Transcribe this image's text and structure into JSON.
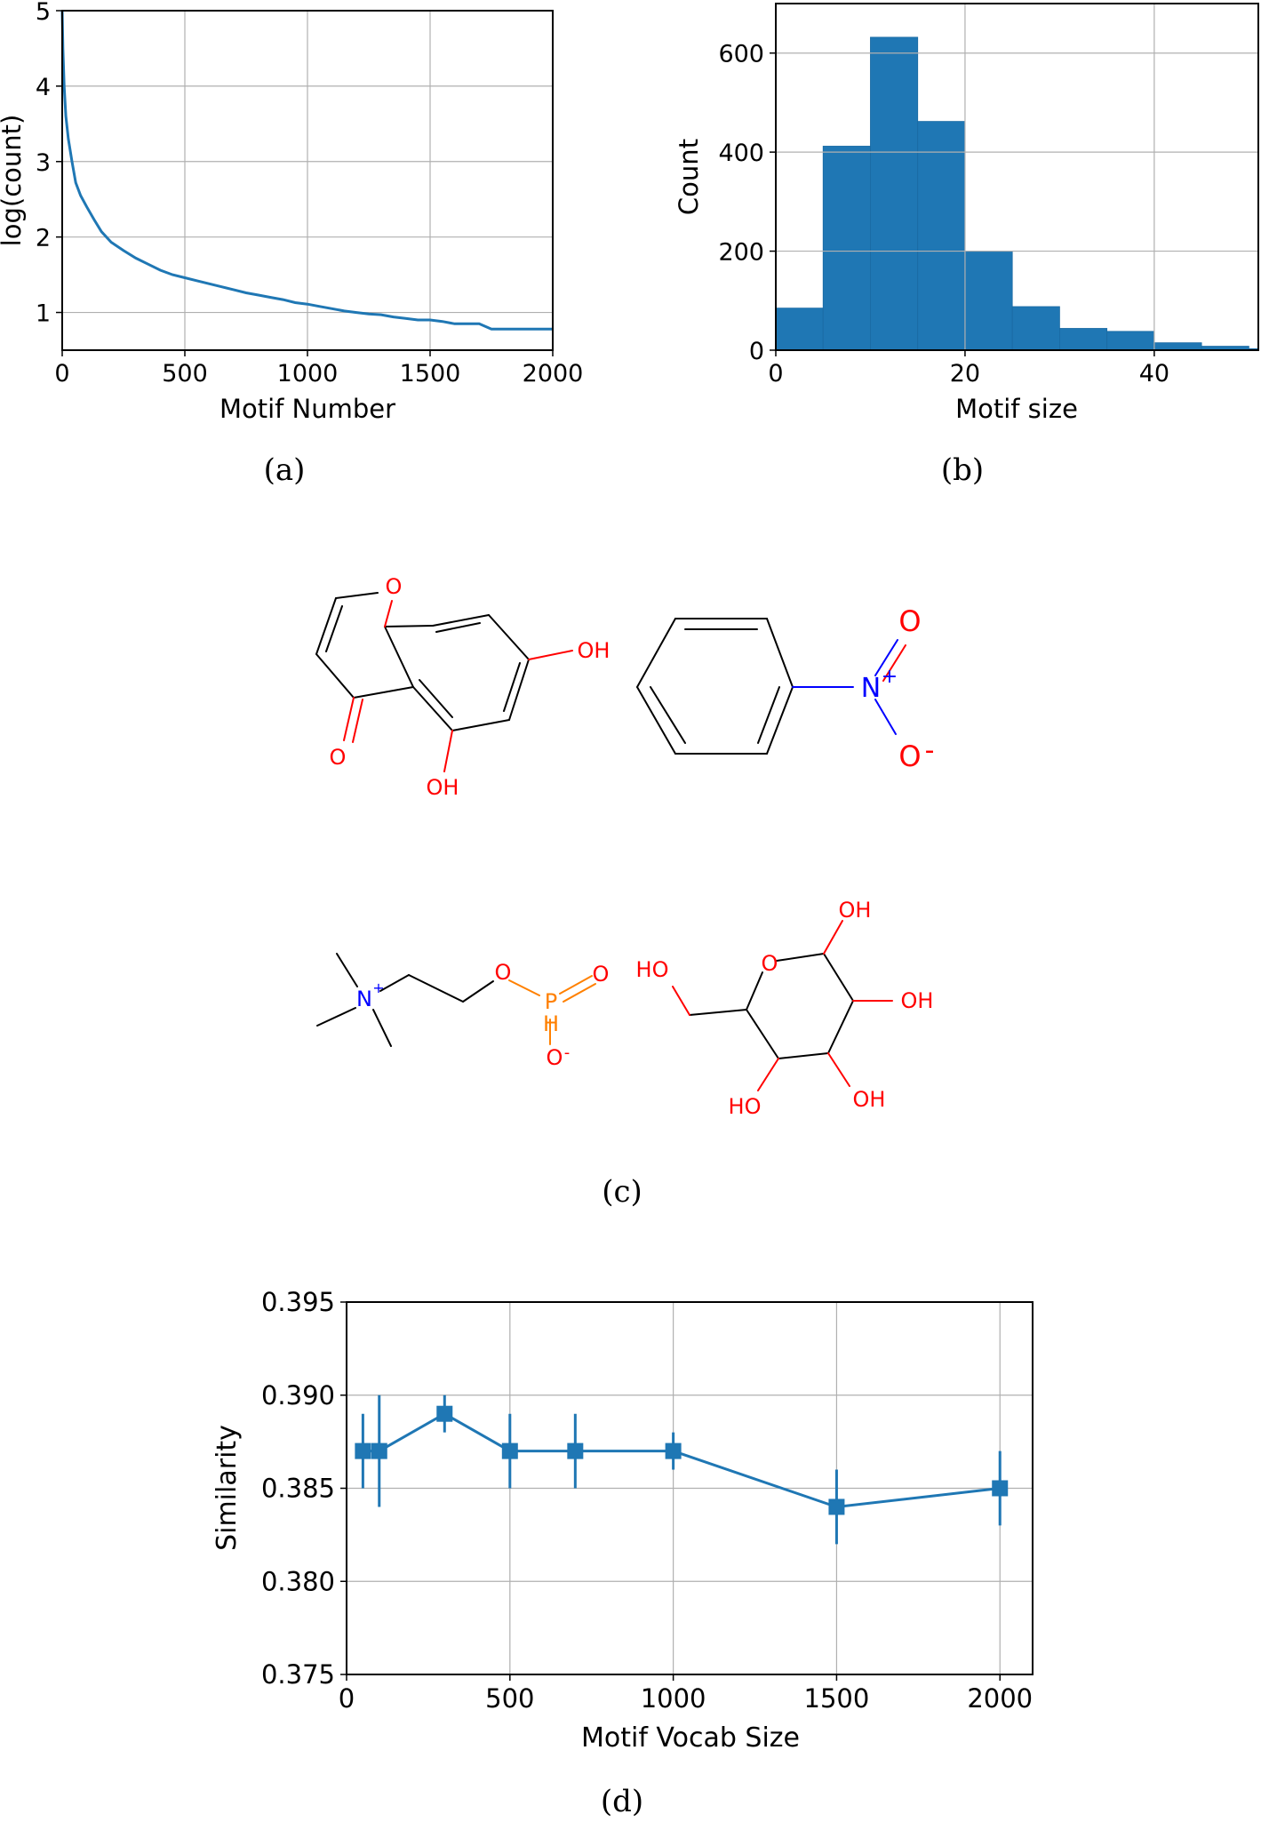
{
  "chart_data": [
    {
      "id": "a",
      "type": "line",
      "caption": "(a)",
      "xlabel": "Motif Number",
      "ylabel": "log(count)",
      "xlim": [
        0,
        2000
      ],
      "ylim": [
        0.5,
        5
      ],
      "xticks": [
        "0",
        "500",
        "1000",
        "1500",
        "2000"
      ],
      "yticks": [
        "1",
        "2",
        "3",
        "4",
        "5"
      ],
      "grid": true,
      "color": "#1f77b4",
      "series": [
        {
          "x": [
            0,
            3,
            8,
            15,
            25,
            40,
            55,
            75,
            100,
            130,
            160,
            200,
            250,
            300,
            350,
            400,
            450,
            500,
            550,
            600,
            650,
            700,
            750,
            800,
            850,
            900,
            950,
            1000,
            1050,
            1100,
            1150,
            1200,
            1250,
            1300,
            1350,
            1400,
            1450,
            1500,
            1550,
            1600,
            1650,
            1700,
            1750,
            1800,
            1900,
            2000
          ],
          "y": [
            5.0,
            4.5,
            4.0,
            3.6,
            3.3,
            3.0,
            2.72,
            2.55,
            2.4,
            2.23,
            2.07,
            1.93,
            1.82,
            1.72,
            1.64,
            1.56,
            1.5,
            1.46,
            1.42,
            1.38,
            1.34,
            1.3,
            1.26,
            1.23,
            1.2,
            1.17,
            1.13,
            1.11,
            1.08,
            1.05,
            1.02,
            1.0,
            0.98,
            0.97,
            0.94,
            0.92,
            0.9,
            0.9,
            0.88,
            0.85,
            0.85,
            0.85,
            0.78,
            0.78,
            0.78,
            0.78
          ]
        }
      ]
    },
    {
      "id": "b",
      "type": "bar",
      "caption": "(b)",
      "xlabel": "Motif size",
      "ylabel": "Count",
      "xlim": [
        0,
        51
      ],
      "ylim": [
        0,
        700
      ],
      "xticks": [
        "0",
        "20",
        "40"
      ],
      "yticks": [
        "0",
        "200",
        "400",
        "600"
      ],
      "grid": true,
      "color": "#1f77b4",
      "bin_edges": [
        0,
        5,
        10,
        15,
        20,
        25,
        30,
        35,
        40,
        45,
        50,
        55
      ],
      "values": [
        85,
        412,
        632,
        462,
        200,
        88,
        44,
        38,
        15,
        8,
        3
      ]
    },
    {
      "id": "d",
      "type": "line",
      "caption": "(d)",
      "xlabel": "Motif Vocab Size",
      "ylabel": "Similarity",
      "xlim": [
        0,
        2100
      ],
      "ylim": [
        0.375,
        0.395
      ],
      "xticks": [
        "0",
        "500",
        "1000",
        "1500",
        "2000"
      ],
      "yticks": [
        "0.375",
        "0.380",
        "0.385",
        "0.390",
        "0.395"
      ],
      "grid": true,
      "color": "#1f77b4",
      "marker": "square",
      "series": [
        {
          "x": [
            50,
            100,
            300,
            500,
            700,
            1000,
            1500,
            2000
          ],
          "y": [
            0.387,
            0.387,
            0.389,
            0.387,
            0.387,
            0.387,
            0.384,
            0.385
          ],
          "yerr": [
            0.002,
            0.003,
            0.001,
            0.002,
            0.002,
            0.001,
            0.002,
            0.002
          ]
        }
      ]
    }
  ],
  "figure_c": {
    "caption": "(c)",
    "molecules": [
      {
        "atom_labels": [
          "O",
          "OH",
          "O",
          "OH"
        ]
      },
      {
        "atom_labels": [
          "N",
          "+",
          "O",
          "O",
          "-"
        ]
      },
      {
        "atom_labels": [
          "N",
          "+",
          "O",
          "P",
          "O",
          "H",
          "O",
          "-"
        ]
      },
      {
        "atom_labels": [
          "O",
          "OH",
          "HO",
          "OH",
          "HO",
          "OH"
        ]
      }
    ],
    "colors": {
      "oxygen": "#ff0000",
      "nitrogen": "#0000ff",
      "phosphorus": "#ff8000",
      "bond": "#000000"
    }
  }
}
